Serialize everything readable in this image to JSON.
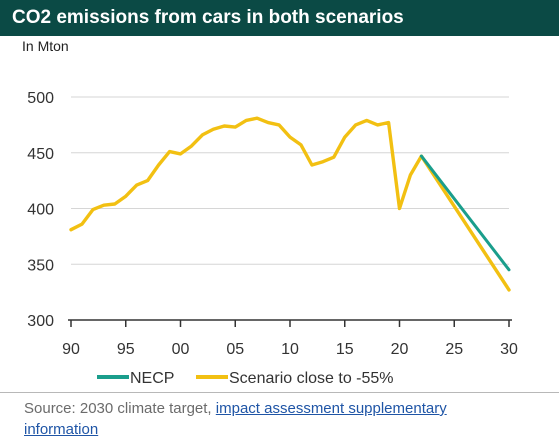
{
  "title": "CO2 emissions from cars in both scenarios",
  "unit_label": "In Mton",
  "source": {
    "prefix": "Source: 2030 climate target, ",
    "link_text": "impact assessment supplementary information"
  },
  "chart_data": {
    "type": "line",
    "title": "CO2 emissions from cars in both scenarios",
    "ylabel": "In Mton",
    "xlabel": "",
    "xlim": [
      1990,
      2030
    ],
    "ylim": [
      300,
      500
    ],
    "x_ticks": [
      1990,
      1995,
      2000,
      2005,
      2010,
      2015,
      2020,
      2025,
      2030
    ],
    "x_tick_labels": [
      "90",
      "95",
      "00",
      "05",
      "10",
      "15",
      "20",
      "25",
      "30"
    ],
    "y_ticks": [
      300,
      350,
      400,
      450,
      500
    ],
    "grid": "horizontal",
    "legend_position": "bottom-left",
    "series": [
      {
        "name": "NECP",
        "color": "#1a9e8c",
        "x": [
          2022,
          2030
        ],
        "y": [
          447,
          345
        ]
      },
      {
        "name": "Scenario close to -55%",
        "color": "#f2c012",
        "x": [
          1990,
          1991,
          1992,
          1993,
          1994,
          1995,
          1996,
          1997,
          1998,
          1999,
          2000,
          2001,
          2002,
          2003,
          2004,
          2005,
          2006,
          2007,
          2008,
          2009,
          2010,
          2011,
          2012,
          2013,
          2014,
          2015,
          2016,
          2017,
          2018,
          2019,
          2020,
          2021,
          2022,
          2030
        ],
        "y": [
          381,
          386,
          399,
          403,
          404,
          411,
          421,
          425,
          439,
          451,
          449,
          456,
          466,
          471,
          474,
          473,
          479,
          481,
          477,
          475,
          464,
          457,
          439,
          442,
          446,
          464,
          475,
          479,
          475,
          477,
          400,
          430,
          447,
          327
        ]
      }
    ]
  }
}
